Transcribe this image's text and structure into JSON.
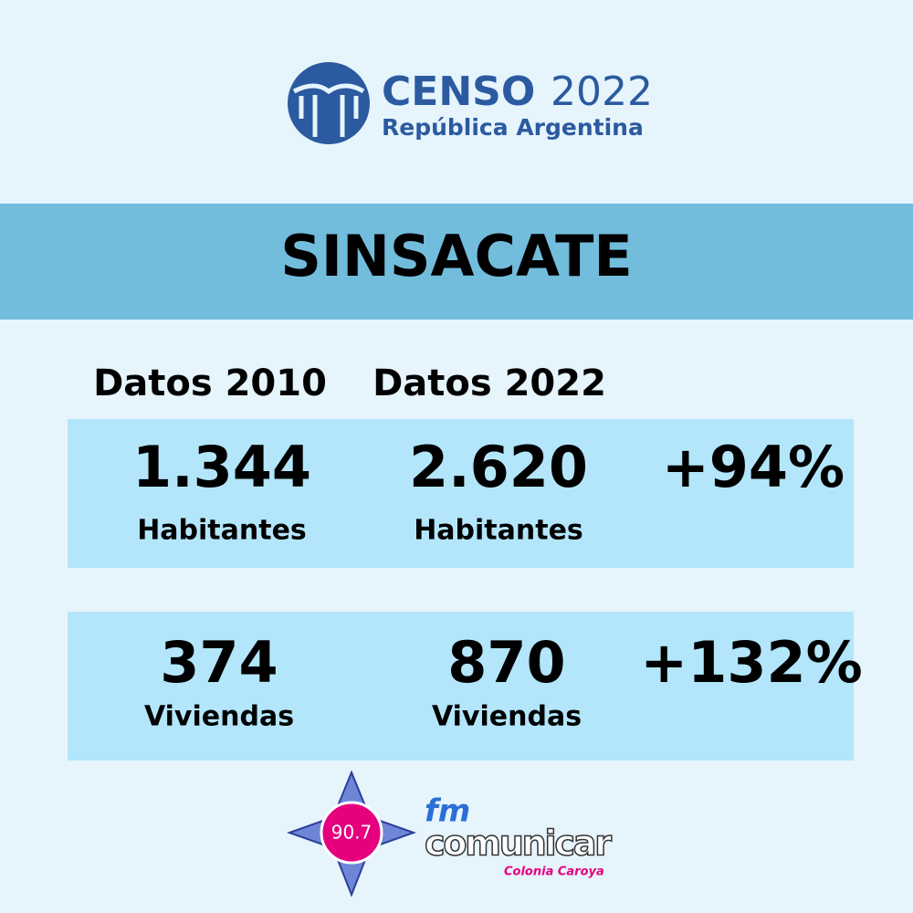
{
  "logo": {
    "brand": "CENSO",
    "year": "2022",
    "country": "República Argentina"
  },
  "banner": {
    "title": "SINSACATE"
  },
  "table": {
    "headers": [
      "Datos 2010",
      "Datos 2022"
    ],
    "rows": [
      {
        "value_2010": "1.344",
        "label_2010": "Habitantes",
        "value_2022": "2.620",
        "label_2022": "Habitantes",
        "change": "+94%"
      },
      {
        "value_2010": "374",
        "label_2010": "Viviendas",
        "value_2022": "870",
        "label_2022": "Viviendas",
        "change": "+132%"
      }
    ]
  },
  "footer": {
    "frequency": "90.7",
    "band": "fm",
    "station": "comunicar",
    "city": "Colonia Caroya"
  }
}
